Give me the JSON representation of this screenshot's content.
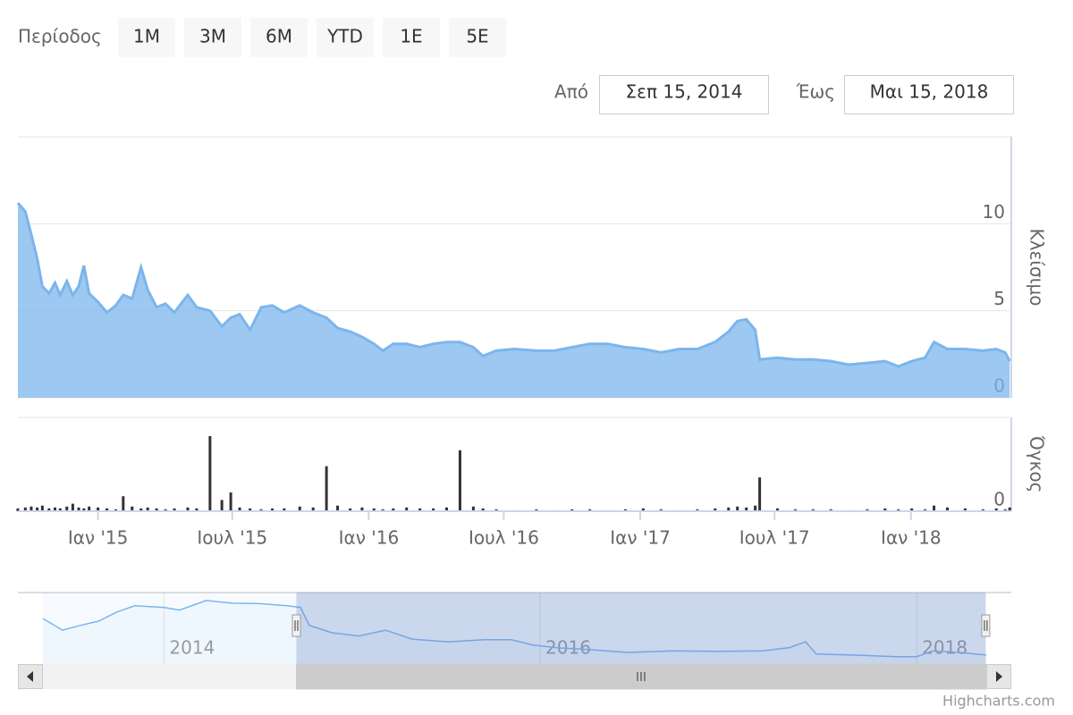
{
  "range_selector": {
    "label": "Περίοδος",
    "buttons": [
      "1Μ",
      "3Μ",
      "6Μ",
      "YTD",
      "1Ε",
      "5Ε"
    ]
  },
  "date_inputs": {
    "from_label": "Από",
    "from": "Σεπ 15, 2014",
    "to_label": "Έως",
    "to": "Μαι 15, 2018"
  },
  "credits": "Highcharts.com",
  "chart_data": [
    {
      "type": "area",
      "x": [
        "2014-09-15",
        "2014-09-25",
        "2014-10-03",
        "2014-10-11",
        "2014-10-18",
        "2014-10-27",
        "2014-11-04",
        "2014-11-11",
        "2014-11-20",
        "2014-11-28",
        "2014-12-06",
        "2014-12-13",
        "2014-12-20",
        "2015-01-01",
        "2015-01-13",
        "2015-01-25",
        "2015-02-04",
        "2015-02-16",
        "2015-02-28",
        "2015-03-09",
        "2015-03-21",
        "2015-04-02",
        "2015-04-14",
        "2015-05-02",
        "2015-05-14",
        "2015-06-01",
        "2015-06-17",
        "2015-06-29",
        "2015-07-11",
        "2015-07-25",
        "2015-08-09",
        "2015-08-24",
        "2015-09-09",
        "2015-09-30",
        "2015-10-18",
        "2015-11-05",
        "2015-11-20",
        "2015-12-07",
        "2015-12-23",
        "2016-01-08",
        "2016-01-20",
        "2016-02-03",
        "2016-02-21",
        "2016-03-10",
        "2016-03-28",
        "2016-04-15",
        "2016-05-03",
        "2016-05-21",
        "2016-06-03",
        "2016-06-21",
        "2016-07-15",
        "2016-08-14",
        "2016-09-07",
        "2016-10-01",
        "2016-10-25",
        "2016-11-18",
        "2016-12-12",
        "2017-01-05",
        "2017-01-29",
        "2017-02-23",
        "2017-03-19",
        "2017-04-12",
        "2017-04-30",
        "2017-05-12",
        "2017-05-24",
        "2017-06-05",
        "2017-06-11",
        "2017-07-05",
        "2017-07-29",
        "2017-08-22",
        "2017-09-15",
        "2017-10-09",
        "2017-11-03",
        "2017-11-27",
        "2017-12-15",
        "2018-01-02",
        "2018-01-20",
        "2018-02-01",
        "2018-02-19",
        "2018-03-15",
        "2018-04-08",
        "2018-04-26",
        "2018-05-08",
        "2018-05-14"
      ],
      "xlim": [
        "2014-09-15",
        "2018-05-15"
      ],
      "xticks": [
        {
          "value": "2015-01-01",
          "label": "Ιαν '15"
        },
        {
          "value": "2015-07-01",
          "label": "Ιουλ '15"
        },
        {
          "value": "2016-01-01",
          "label": "Ιαν '16"
        },
        {
          "value": "2016-07-01",
          "label": "Ιουλ '16"
        },
        {
          "value": "2017-01-01",
          "label": "Ιαν '17"
        },
        {
          "value": "2017-07-01",
          "label": "Ιουλ '17"
        },
        {
          "value": "2018-01-01",
          "label": "Ιαν '18"
        }
      ],
      "ylim": [
        0,
        15
      ],
      "yticks": [
        0,
        5,
        10
      ],
      "y_title": "Κλείσιμο",
      "y2lim": [
        0,
        100
      ],
      "y2ticks": [
        0
      ],
      "y2_title": "Όγκος",
      "grid": true,
      "series": [
        {
          "color": "#7cb5ec",
          "values": [
            11.2,
            10.7,
            9.4,
            8.0,
            6.4,
            6.0,
            6.6,
            5.9,
            6.7,
            5.9,
            6.4,
            7.6,
            6.0,
            5.5,
            4.9,
            5.3,
            5.9,
            5.7,
            7.5,
            6.2,
            5.2,
            5.4,
            4.9,
            5.9,
            5.2,
            5.0,
            4.1,
            4.6,
            4.8,
            3.9,
            5.2,
            5.3,
            4.9,
            5.3,
            4.9,
            4.6,
            4.0,
            3.8,
            3.5,
            3.1,
            2.7,
            3.1,
            3.1,
            2.9,
            3.1,
            3.2,
            3.2,
            2.9,
            2.4,
            2.7,
            2.8,
            2.7,
            2.7,
            2.9,
            3.1,
            3.1,
            2.9,
            2.8,
            2.6,
            2.8,
            2.8,
            3.2,
            3.8,
            4.4,
            4.5,
            3.9,
            2.2,
            2.3,
            2.2,
            2.2,
            2.1,
            1.9,
            2.0,
            2.1,
            1.8,
            2.1,
            2.3,
            3.2,
            2.8,
            2.8,
            2.7,
            2.8,
            2.6,
            2.1
          ]
        },
        {
          "color": "#333333",
          "axis": "y2",
          "values": [
            3,
            4,
            5,
            4,
            6,
            3,
            4,
            3,
            5,
            8,
            4,
            3,
            5,
            4,
            3,
            2,
            16,
            5,
            3,
            4,
            3,
            2,
            3,
            4,
            3,
            80,
            12,
            20,
            4,
            3,
            2,
            3,
            3,
            5,
            4,
            48,
            6,
            3,
            4,
            3,
            2,
            3,
            4,
            3,
            3,
            4,
            65,
            5,
            3,
            2,
            1,
            2,
            1,
            2,
            2,
            1,
            2,
            3,
            2,
            1,
            2,
            3,
            4,
            5,
            4,
            6,
            36,
            3,
            2,
            2,
            2,
            1,
            2,
            3,
            2,
            3,
            2,
            6,
            4,
            3,
            2,
            3,
            2,
            4
          ]
        }
      ]
    },
    {
      "type": "line",
      "x": [
        "2013-05-11",
        "2013-06-18",
        "2013-07-23",
        "2013-08-27",
        "2013-10-01",
        "2013-11-05",
        "2014-01-01",
        "2014-01-31",
        "2014-03-24",
        "2014-05-15",
        "2014-07-06",
        "2014-08-28",
        "2014-09-23",
        "2014-10-10",
        "2014-11-23",
        "2015-01-14",
        "2015-03-07",
        "2015-04-28",
        "2015-07-07",
        "2015-09-15",
        "2015-11-06",
        "2015-12-18",
        "2016-02-01",
        "2016-04-11",
        "2016-06-19",
        "2016-09-14",
        "2016-12-10",
        "2017-03-07",
        "2017-04-29",
        "2017-05-30",
        "2017-06-20",
        "2017-08-29",
        "2017-11-24",
        "2018-01-01",
        "2018-02-01",
        "2018-03-25",
        "2018-05-16"
      ],
      "xlim": [
        "2013-05-11",
        "2018-05-16"
      ],
      "xticks": [
        {
          "value": "2014-01-01",
          "label": "2014"
        },
        {
          "value": "2016-01-01",
          "label": "2016"
        },
        {
          "value": "2018-01-01",
          "label": "2018"
        }
      ],
      "ylim": [
        0,
        13.5
      ],
      "color": "#7cb5ec",
      "values": [
        8.6,
        6.4,
        7.3,
        8.1,
        9.8,
        11.0,
        10.7,
        10.2,
        12.0,
        11.5,
        11.4,
        11.0,
        10.7,
        7.3,
        5.9,
        5.3,
        6.4,
        4.7,
        4.2,
        4.6,
        4.6,
        3.6,
        3.1,
        2.7,
        2.2,
        2.5,
        2.4,
        2.5,
        3.1,
        4.2,
        1.9,
        1.7,
        1.4,
        1.4,
        2.5,
        2.2,
        1.7
      ]
    }
  ]
}
